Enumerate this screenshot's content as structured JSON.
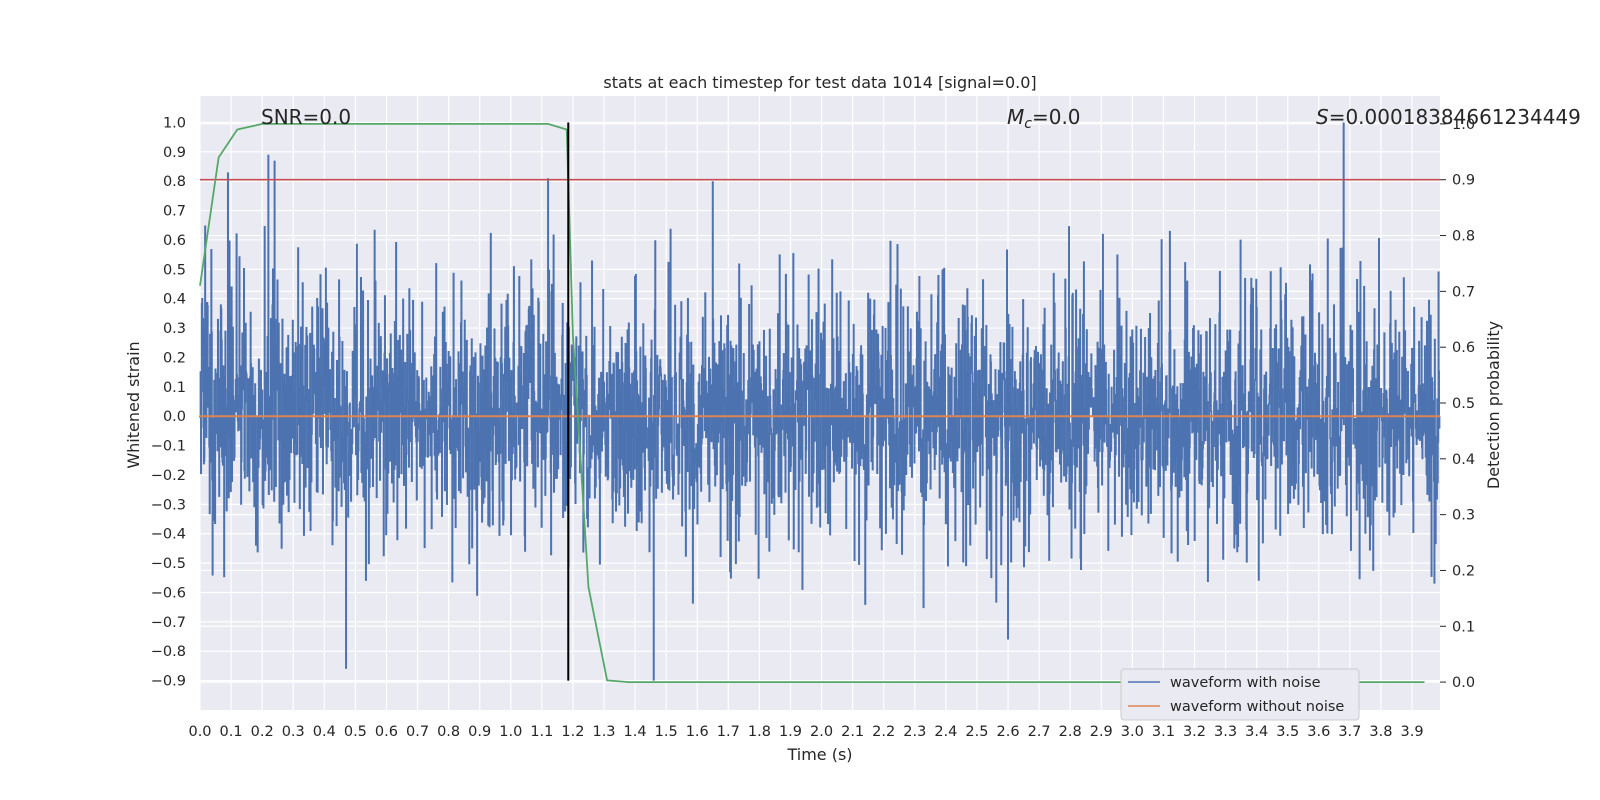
{
  "chart_data": {
    "type": "line",
    "title": "stats at each timestep for test data 1014 [signal=0.0]",
    "xlabel": "Time (s)",
    "ylabel": "Whitened strain",
    "y2label": "Detection probability",
    "xlim": [
      0.0,
      3.99
    ],
    "ylim": [
      -1.0,
      1.09
    ],
    "y2lim": [
      -0.05,
      1.05
    ],
    "xticks": [
      "0.0",
      "0.1",
      "0.2",
      "0.3",
      "0.4",
      "0.5",
      "0.6",
      "0.7",
      "0.8",
      "0.9",
      "1.0",
      "1.1",
      "1.2",
      "1.3",
      "1.4",
      "1.5",
      "1.6",
      "1.7",
      "1.8",
      "1.9",
      "2.0",
      "2.1",
      "2.2",
      "2.3",
      "2.4",
      "2.5",
      "2.6",
      "2.7",
      "2.8",
      "2.9",
      "3.0",
      "3.1",
      "3.2",
      "3.3",
      "3.4",
      "3.5",
      "3.6",
      "3.7",
      "3.8",
      "3.9"
    ],
    "yticks": [
      "−0.9",
      "−0.8",
      "−0.7",
      "−0.6",
      "−0.5",
      "−0.4",
      "−0.3",
      "−0.2",
      "−0.1",
      "0.0",
      "0.1",
      "0.2",
      "0.3",
      "0.4",
      "0.5",
      "0.6",
      "0.7",
      "0.8",
      "0.9",
      "1.0"
    ],
    "y2ticks": [
      "0.0",
      "0.1",
      "0.2",
      "0.3",
      "0.4",
      "0.5",
      "0.6",
      "0.7",
      "0.8",
      "0.9",
      "1.0"
    ],
    "annotations": {
      "snr": "SNR=0.0",
      "mc_symbol": "M",
      "mc_sub": "c",
      "mc_value": "=0.0",
      "s_symbol": "S",
      "s_value": "=0.00018384661234449"
    },
    "threshold": {
      "axis": "right",
      "value": 0.9,
      "color": "#c44e52"
    },
    "vline": {
      "x": 1.185,
      "y_range": [
        -0.9,
        1.0
      ],
      "color": "#000000"
    },
    "grid": true,
    "legend_position": "lower-right",
    "series": [
      {
        "name": "waveform with noise",
        "axis": "left",
        "color": "#4c72b0",
        "description": "dense noisy strain, roughly between -0.9 and 1.0",
        "peaks": [
          {
            "x": 0.09,
            "y": 0.83
          },
          {
            "x": 0.22,
            "y": 0.89
          },
          {
            "x": 0.24,
            "y": 0.87
          },
          {
            "x": 0.47,
            "y": -0.86
          },
          {
            "x": 1.12,
            "y": 0.81
          },
          {
            "x": 1.46,
            "y": -0.9
          },
          {
            "x": 1.65,
            "y": 0.8
          },
          {
            "x": 3.68,
            "y": 1.0
          },
          {
            "x": 2.6,
            "y": -0.76
          }
        ]
      },
      {
        "name": "waveform without noise",
        "axis": "left",
        "color": "#dd8452",
        "x": [
          0.0,
          3.99
        ],
        "y": [
          0.0,
          0.0
        ]
      },
      {
        "name": "detection probability",
        "axis": "right",
        "color": "#55a868",
        "x": [
          0.0,
          0.06,
          0.12,
          0.2,
          0.5,
          1.0,
          1.12,
          1.18,
          1.2,
          1.25,
          1.31,
          1.38,
          1.5,
          2.5,
          3.5,
          3.94
        ],
        "y": [
          0.71,
          0.94,
          0.99,
          1.0,
          1.0,
          1.0,
          1.0,
          0.99,
          0.62,
          0.17,
          0.003,
          0.0,
          0.0,
          0.0,
          0.0,
          0.0
        ]
      }
    ]
  }
}
